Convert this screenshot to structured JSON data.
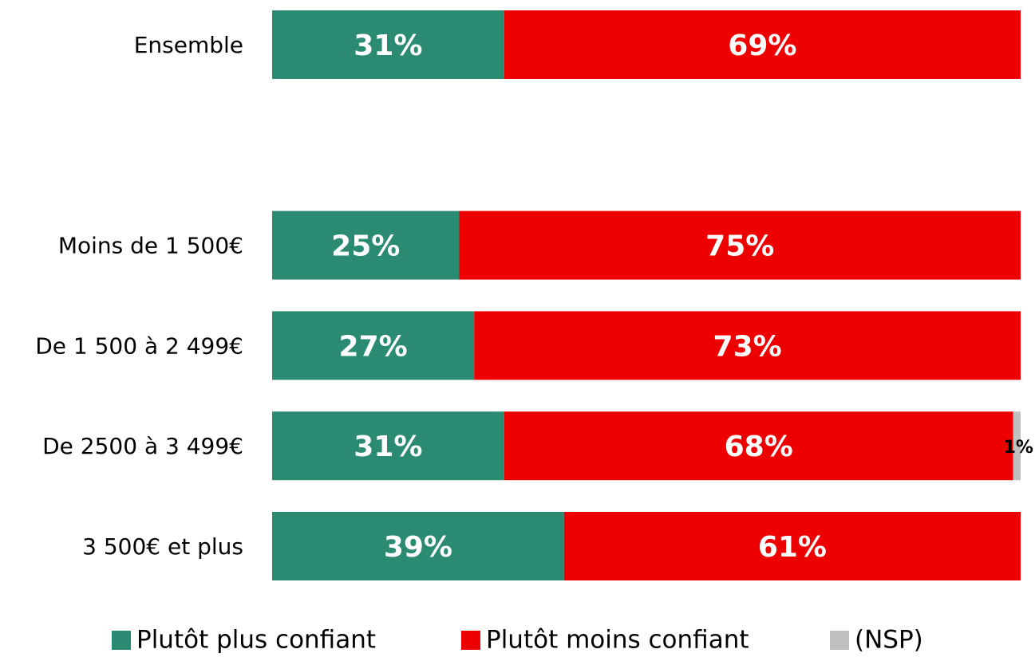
{
  "chart_data": {
    "type": "stacked-bar-horizontal",
    "categories": [
      "Ensemble",
      null,
      "Moins de 1 500€",
      "De 1 500 à 2 499€",
      "De 2500 à 3 499€",
      "3 500€ et plus"
    ],
    "series": [
      {
        "name": "Plutôt plus confiant",
        "color": "#2a8a72",
        "values": [
          31,
          null,
          25,
          27,
          31,
          39
        ],
        "value_labels": [
          "31%",
          null,
          "25%",
          "27%",
          "31%",
          "39%"
        ]
      },
      {
        "name": "Plutôt moins confiant",
        "color": "#ee0000",
        "values": [
          69,
          null,
          75,
          73,
          68,
          61
        ],
        "value_labels": [
          "69%",
          null,
          "75%",
          "73%",
          "68%",
          "61%"
        ]
      },
      {
        "name": "(NSP)",
        "color": "#c0c0c0",
        "values": [
          null,
          null,
          null,
          null,
          1,
          null
        ],
        "value_labels": [
          null,
          null,
          null,
          null,
          "1%",
          null
        ]
      }
    ],
    "legend": "bottom"
  }
}
